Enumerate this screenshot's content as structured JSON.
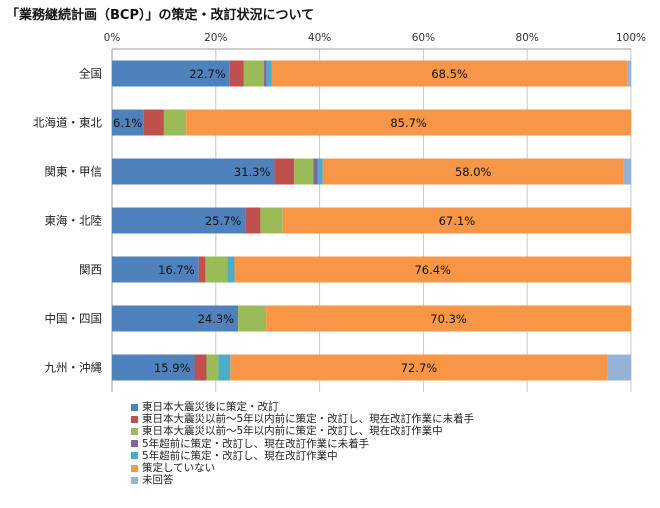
{
  "title": "「業務継続計画（BCP）」の策定・改訂状況について",
  "chart_data": {
    "type": "bar",
    "orientation": "horizontal",
    "stacked": true,
    "xlim": [
      0,
      100
    ],
    "x_ticks": [
      "0%",
      "20%",
      "40%",
      "60%",
      "80%",
      "100%"
    ],
    "grid": true,
    "legend_position": "bottom",
    "categories": [
      "全国",
      "北海道・東北",
      "関東・甲信",
      "東海・北陸",
      "関西",
      "中国・四国",
      "九州・沖縄"
    ],
    "series": [
      {
        "name": "東日本大震災後に策定・改訂",
        "color": "#4F81BD",
        "values": [
          22.7,
          6.1,
          31.3,
          25.7,
          16.7,
          24.3,
          15.9
        ],
        "labels": [
          "22.7%",
          "6.1%",
          "31.3%",
          "25.7%",
          "16.7%",
          "24.3%",
          "15.9%"
        ]
      },
      {
        "name": "東日本大震災以前～5年以内前に策定・改訂し、現在改訂作業に未着手",
        "color": "#C0504D",
        "values": [
          2.7,
          3.9,
          3.8,
          2.9,
          1.3,
          0.0,
          2.3
        ]
      },
      {
        "name": "東日本大震災以前～5年以内前に策定・改訂し、現在改訂作業中",
        "color": "#9BBB59",
        "values": [
          3.9,
          4.3,
          3.7,
          4.3,
          4.2,
          5.4,
          2.3
        ]
      },
      {
        "name": "5年超前に策定・改訂し、現在改訂作業に未着手",
        "color": "#8064A2",
        "values": [
          0.5,
          0.0,
          0.8,
          0.0,
          0.0,
          0.0,
          0.0
        ]
      },
      {
        "name": "5年超前に策定・改訂し、現在改訂作業中",
        "color": "#4BACC6",
        "values": [
          1.0,
          0.0,
          1.0,
          0.0,
          1.4,
          0.0,
          2.3
        ]
      },
      {
        "name": "策定していない",
        "color": "#F79646",
        "values": [
          68.5,
          85.7,
          58.0,
          67.1,
          76.4,
          70.3,
          72.7
        ],
        "labels": [
          "68.5%",
          "85.7%",
          "58.0%",
          "67.1%",
          "76.4%",
          "70.3%",
          "72.7%"
        ]
      },
      {
        "name": "未回答",
        "color": "#95B3D7",
        "values": [
          0.7,
          0.0,
          1.4,
          0.0,
          0.0,
          0.0,
          4.5
        ]
      }
    ]
  }
}
